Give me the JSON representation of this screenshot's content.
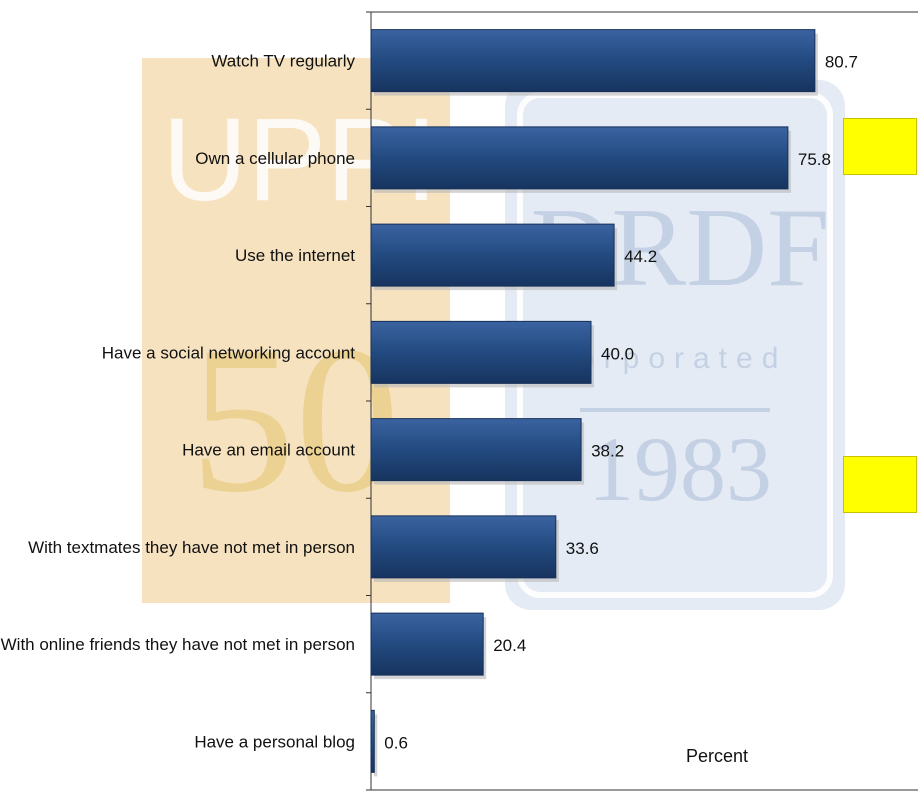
{
  "chart_data": {
    "type": "bar",
    "orientation": "horizontal",
    "categories": [
      "Watch TV regularly",
      "Own a cellular phone",
      "Use the internet",
      "Have a social networking account",
      "Have an email account",
      "With textmates they have not met in person",
      "With online friends they have not met in person",
      "Have a personal blog"
    ],
    "values": [
      80.7,
      75.8,
      44.2,
      40.0,
      38.2,
      33.6,
      20.4,
      0.6
    ],
    "value_labels": [
      "80.7",
      "75.8",
      "44.2",
      "40.0",
      "38.2",
      "33.6",
      "20.4",
      "0.6"
    ],
    "xlabel": "Percent",
    "xlim": [
      0,
      100
    ],
    "grid": false,
    "legend": "none",
    "bar_color": "#234a80"
  },
  "watermark": {
    "left_text": "UPPI",
    "left_number": "50",
    "right_text": "DRDF",
    "right_sub": "incorporated",
    "right_year": "1983"
  },
  "colors": {
    "bar": "#234a80",
    "callout": "#ffff00",
    "watermark_left": "#f3d9a8",
    "watermark_right": "#cdd9ea"
  }
}
